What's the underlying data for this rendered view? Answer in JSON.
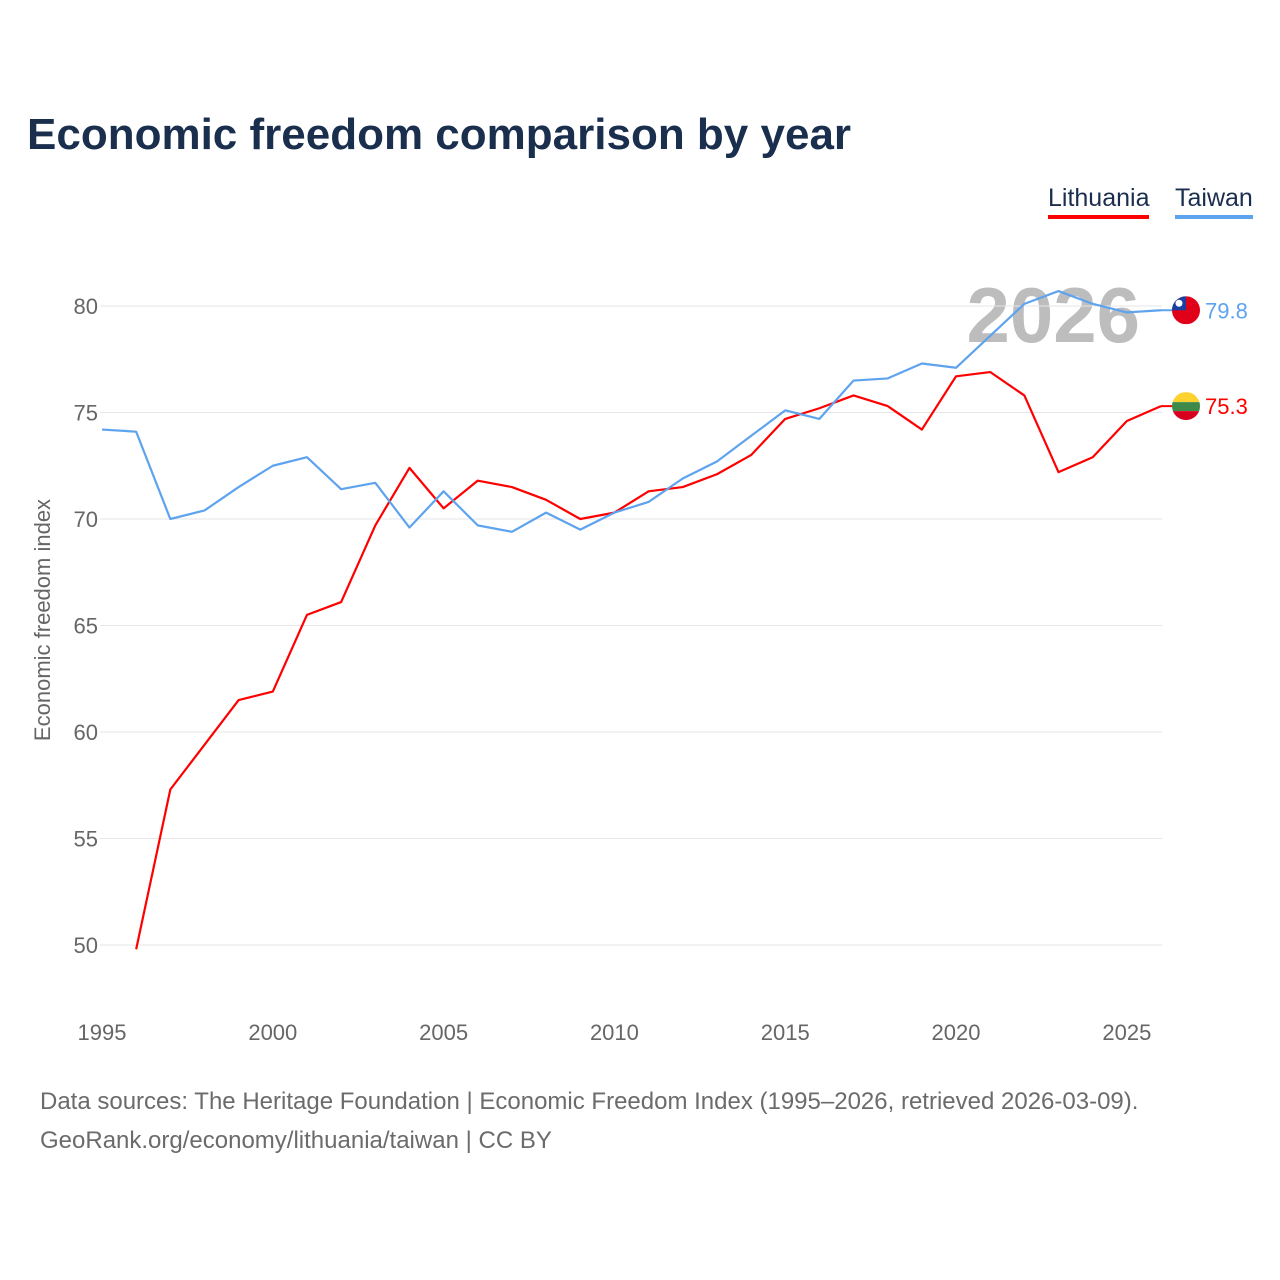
{
  "title": "Economic freedom comparison by year",
  "legend": [
    {
      "label": "Lithuania",
      "color": "#ff0000"
    },
    {
      "label": "Taiwan",
      "color": "#5ea3ee"
    }
  ],
  "sources": {
    "line1": "Data sources: The Heritage Foundation | Economic Freedom Index (1995–2026, retrieved 2026-03-09).",
    "line2": "GeoRank.org/economy/lithuania/taiwan | CC BY"
  },
  "chart_data": {
    "type": "line",
    "title": "Economic freedom comparison by year",
    "xlabel": "",
    "ylabel": "Economic freedom index",
    "xlim": [
      1995,
      2026
    ],
    "ylim": [
      47,
      83
    ],
    "xticks": [
      1995,
      2000,
      2005,
      2010,
      2015,
      2020,
      2025
    ],
    "yticks": [
      50,
      55,
      60,
      65,
      70,
      75,
      80
    ],
    "grid": true,
    "legend_position": "top-right",
    "watermark_year": "2026",
    "series": [
      {
        "name": "Lithuania",
        "color": "#ff0000",
        "end_label": "75.3",
        "x": [
          1996,
          1997,
          1998,
          1999,
          2000,
          2001,
          2002,
          2003,
          2004,
          2005,
          2006,
          2007,
          2008,
          2009,
          2010,
          2011,
          2012,
          2013,
          2014,
          2015,
          2016,
          2017,
          2018,
          2019,
          2020,
          2021,
          2022,
          2023,
          2024,
          2025,
          2026
        ],
        "values": [
          49.8,
          57.3,
          59.4,
          61.5,
          61.9,
          65.5,
          66.1,
          69.7,
          72.4,
          70.5,
          71.8,
          71.5,
          70.9,
          70.0,
          70.3,
          71.3,
          71.5,
          72.1,
          73.0,
          74.7,
          75.2,
          75.8,
          75.3,
          74.2,
          76.7,
          76.9,
          75.8,
          72.2,
          72.9,
          74.6,
          75.3
        ]
      },
      {
        "name": "Taiwan",
        "color": "#5ea3ee",
        "end_label": "79.8",
        "x": [
          1995,
          1996,
          1997,
          1998,
          1999,
          2000,
          2001,
          2002,
          2003,
          2004,
          2005,
          2006,
          2007,
          2008,
          2009,
          2010,
          2011,
          2012,
          2013,
          2014,
          2015,
          2016,
          2017,
          2018,
          2019,
          2020,
          2021,
          2022,
          2023,
          2024,
          2025,
          2026
        ],
        "values": [
          74.2,
          74.1,
          70.0,
          70.4,
          71.5,
          72.5,
          72.9,
          71.4,
          71.7,
          69.6,
          71.3,
          69.7,
          69.4,
          70.3,
          69.5,
          70.3,
          70.8,
          71.9,
          72.7,
          73.9,
          75.1,
          74.7,
          76.5,
          76.6,
          77.3,
          77.1,
          78.6,
          80.1,
          80.7,
          80.1,
          79.7,
          79.8
        ]
      }
    ]
  }
}
